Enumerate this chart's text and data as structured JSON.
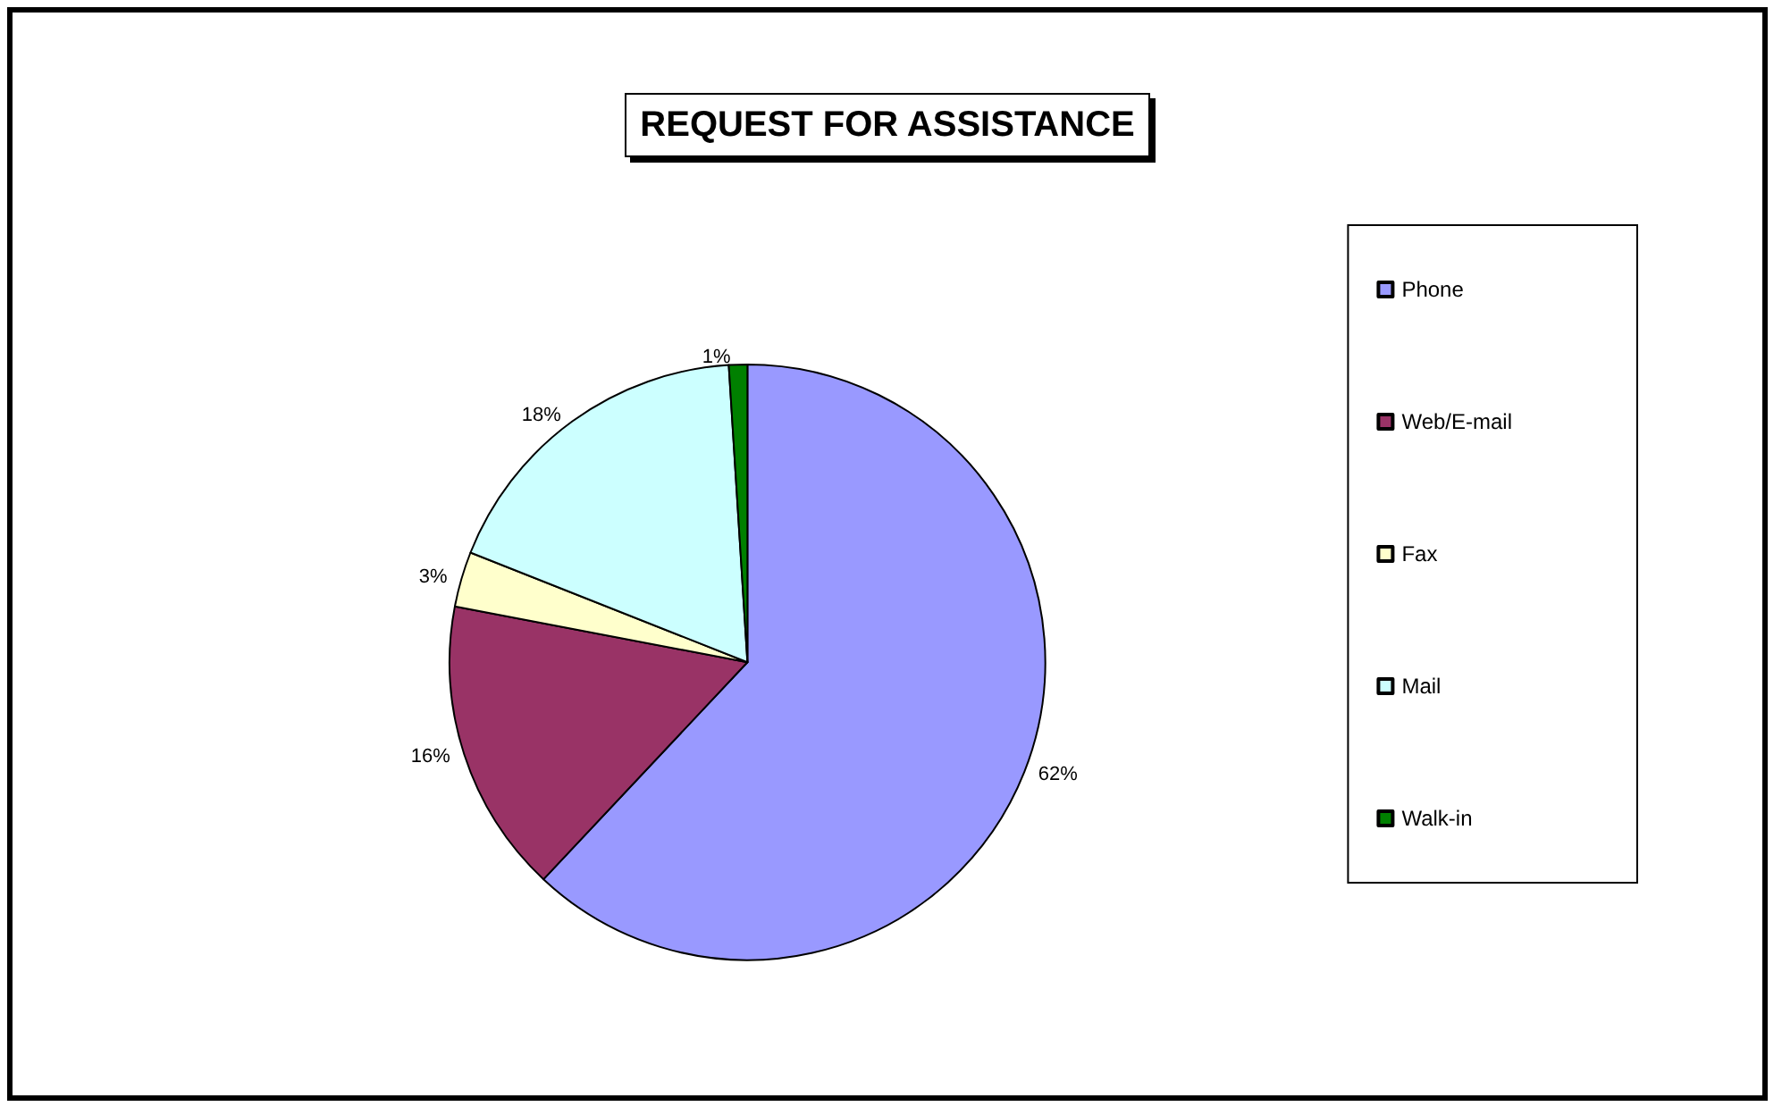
{
  "chart_data": {
    "type": "pie",
    "title": "REQUEST FOR ASSISTANCE",
    "categories": [
      "Phone",
      "Web/E-mail",
      "Fax",
      "Mail",
      "Walk-in"
    ],
    "values": [
      62,
      16,
      3,
      18,
      1
    ],
    "colors": [
      "#9999ff",
      "#993366",
      "#ffffcc",
      "#ccffff",
      "#008000"
    ],
    "value_labels": [
      "62%",
      "16%",
      "3%",
      "18%",
      "1%"
    ],
    "legend": "right"
  }
}
